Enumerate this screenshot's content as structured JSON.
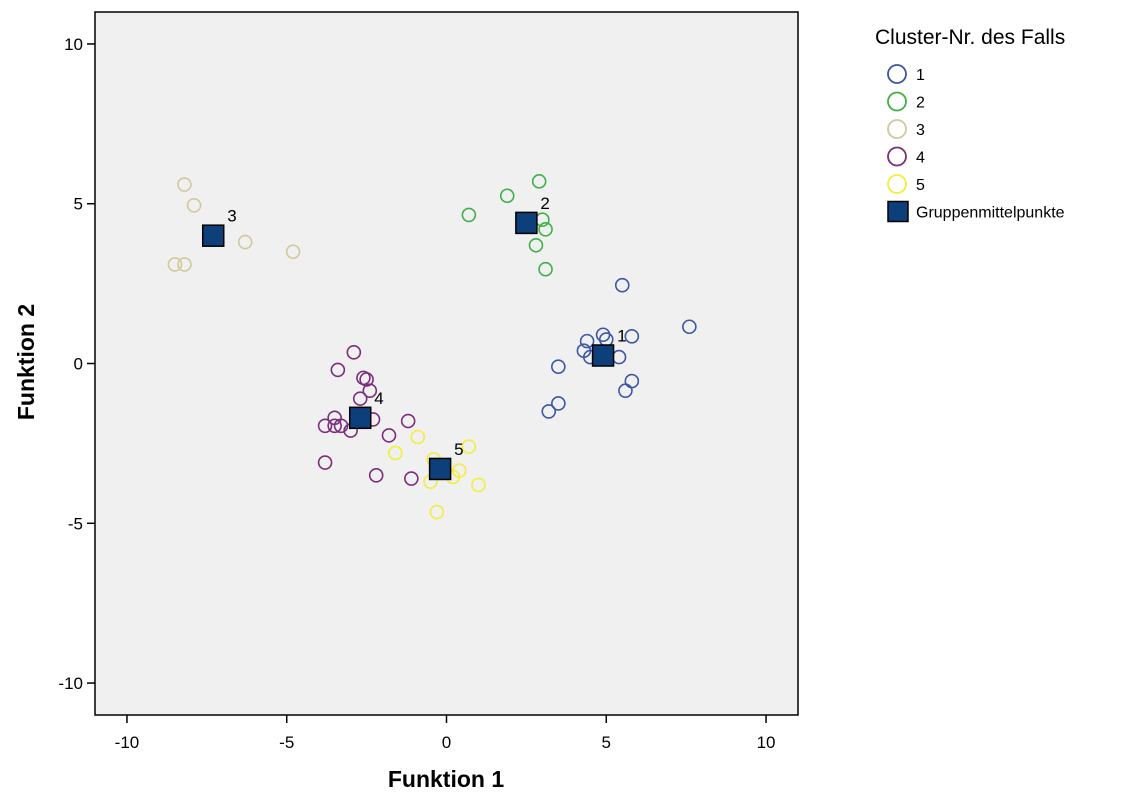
{
  "chart_data": {
    "type": "scatter",
    "xlabel": "Funktion 1",
    "ylabel": "Funktion 2",
    "xlim": [
      -11,
      11
    ],
    "ylim": [
      -11,
      11
    ],
    "xticks": [
      -10,
      -5,
      0,
      5,
      10
    ],
    "yticks": [
      -10,
      -5,
      0,
      5,
      10
    ],
    "grid": false,
    "legend": {
      "title": "Cluster-Nr.  des Falls",
      "placement": "top-right",
      "centroid_label": "Gruppenmittelpunkte"
    },
    "series": [
      {
        "name": "1",
        "color": "#3a56a4",
        "points": [
          [
            5.5,
            2.45
          ],
          [
            7.6,
            1.15
          ],
          [
            4.9,
            0.9
          ],
          [
            5.8,
            0.85
          ],
          [
            4.4,
            0.7
          ],
          [
            5.0,
            0.75
          ],
          [
            4.3,
            0.4
          ],
          [
            4.5,
            0.2
          ],
          [
            5.4,
            0.2
          ],
          [
            3.5,
            -0.1
          ],
          [
            5.8,
            -0.55
          ],
          [
            5.6,
            -0.85
          ],
          [
            3.5,
            -1.25
          ],
          [
            3.2,
            -1.5
          ]
        ]
      },
      {
        "name": "2",
        "color": "#3db046",
        "points": [
          [
            2.9,
            5.7
          ],
          [
            1.9,
            5.25
          ],
          [
            0.7,
            4.65
          ],
          [
            3.0,
            4.5
          ],
          [
            3.1,
            4.2
          ],
          [
            2.8,
            3.7
          ],
          [
            3.1,
            2.95
          ]
        ]
      },
      {
        "name": "3",
        "color": "#d2c89a",
        "points": [
          [
            -8.2,
            5.6
          ],
          [
            -7.9,
            4.95
          ],
          [
            -6.3,
            3.8
          ],
          [
            -4.8,
            3.5
          ],
          [
            -8.5,
            3.1
          ],
          [
            -8.2,
            3.1
          ]
        ]
      },
      {
        "name": "4",
        "color": "#7b2c7d",
        "points": [
          [
            -2.9,
            0.35
          ],
          [
            -3.4,
            -0.2
          ],
          [
            -2.6,
            -0.45
          ],
          [
            -2.5,
            -0.5
          ],
          [
            -2.4,
            -0.85
          ],
          [
            -2.7,
            -1.1
          ],
          [
            -2.3,
            -1.75
          ],
          [
            -3.5,
            -1.7
          ],
          [
            -1.2,
            -1.8
          ],
          [
            -3.5,
            -1.95
          ],
          [
            -3.8,
            -1.95
          ],
          [
            -3.3,
            -1.95
          ],
          [
            -3.0,
            -2.1
          ],
          [
            -1.8,
            -2.25
          ],
          [
            -3.8,
            -3.1
          ],
          [
            -2.2,
            -3.5
          ],
          [
            -1.1,
            -3.6
          ]
        ]
      },
      {
        "name": "5",
        "color": "#f2ee3a",
        "points": [
          [
            -0.9,
            -2.3
          ],
          [
            0.7,
            -2.6
          ],
          [
            -1.6,
            -2.8
          ],
          [
            -0.4,
            -3.0
          ],
          [
            0.4,
            -3.35
          ],
          [
            -0.5,
            -3.7
          ],
          [
            0.2,
            -3.55
          ],
          [
            1.0,
            -3.8
          ],
          [
            -0.3,
            -4.65
          ]
        ]
      }
    ],
    "centroids": [
      {
        "label": "1",
        "x": 4.9,
        "y": 0.25
      },
      {
        "label": "2",
        "x": 2.5,
        "y": 4.4
      },
      {
        "label": "3",
        "x": -7.3,
        "y": 4.0
      },
      {
        "label": "4",
        "x": -2.7,
        "y": -1.7
      },
      {
        "label": "5",
        "x": -0.2,
        "y": -3.3
      }
    ],
    "colors": {
      "plot_background": "#f0f0f0",
      "centroid_fill": "#0d3f7a",
      "centroid_stroke": "#000000"
    }
  }
}
